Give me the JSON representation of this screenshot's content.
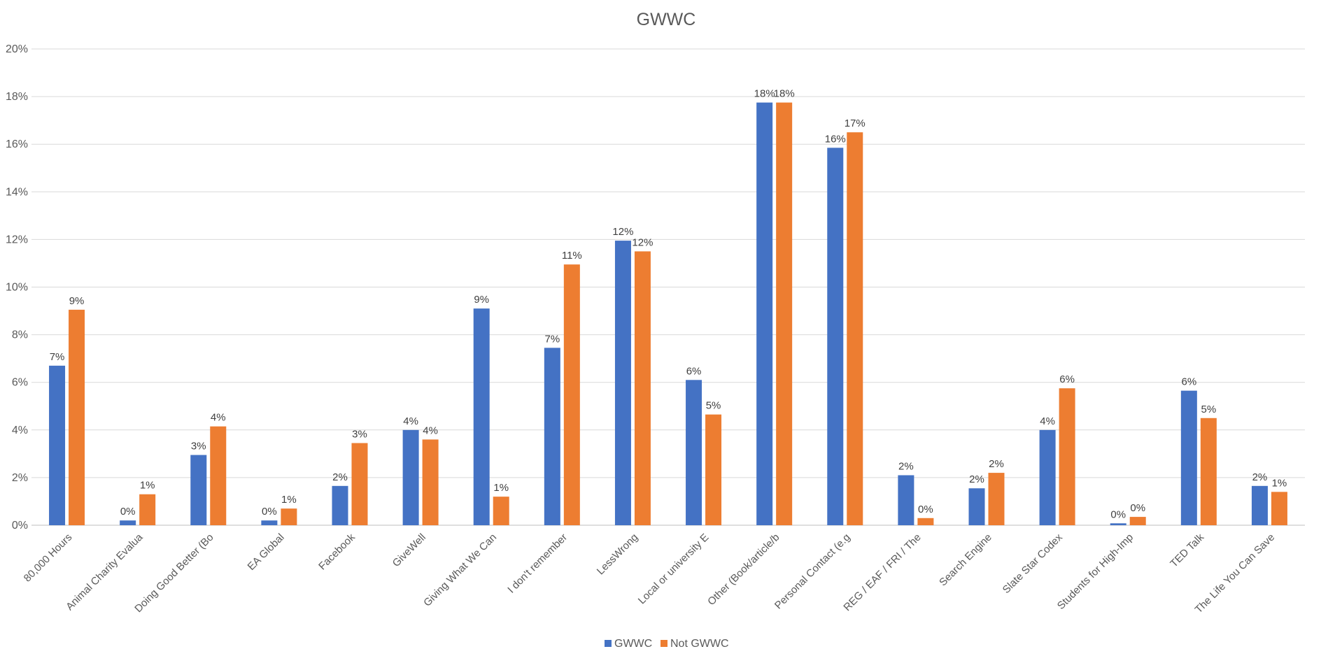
{
  "chart_data": {
    "type": "bar",
    "title": "GWWC",
    "categories": [
      "80,000 Hours",
      "Animal Charity Evalua",
      "Doing Good Better (Bo",
      "EA Global",
      "Facebook",
      "GiveWell",
      "Giving What We Can",
      "I don't remember",
      "LessWrong",
      "Local or university E",
      "Other (Book/article/b",
      "Personal Contact (e.g",
      "REG / EAF / FRI / The",
      "Search Engine",
      "Slate Star Codex",
      "Students for High-Imp",
      "TED Talk",
      "The Life You Can Save"
    ],
    "series": [
      {
        "name": "GWWC",
        "color": "#4472c4",
        "values": [
          6.7,
          0.2,
          2.95,
          0.2,
          1.65,
          4.0,
          9.1,
          7.45,
          11.95,
          6.1,
          17.75,
          15.85,
          2.1,
          1.55,
          4.0,
          0.08,
          5.65,
          1.65
        ],
        "labels": [
          "7%",
          "0%",
          "3%",
          "0%",
          "2%",
          "4%",
          "9%",
          "7%",
          "12%",
          "6%",
          "18%",
          "16%",
          "2%",
          "2%",
          "4%",
          "0%",
          "6%",
          "2%"
        ]
      },
      {
        "name": "Not GWWC",
        "color": "#ed7d31",
        "values": [
          9.05,
          1.3,
          4.15,
          0.7,
          3.45,
          3.6,
          1.2,
          10.95,
          11.5,
          4.65,
          17.75,
          16.5,
          0.3,
          2.2,
          5.75,
          0.35,
          4.5,
          1.4
        ],
        "labels": [
          "9%",
          "1%",
          "4%",
          "1%",
          "3%",
          "4%",
          "1%",
          "11%",
          "12%",
          "5%",
          "18%",
          "17%",
          "0%",
          "2%",
          "6%",
          "0%",
          "5%",
          "1%"
        ]
      }
    ],
    "ylim": [
      0,
      20
    ],
    "yticks": [
      0,
      2,
      4,
      6,
      8,
      10,
      12,
      14,
      16,
      18,
      20
    ],
    "ytick_labels": [
      "0%",
      "2%",
      "4%",
      "6%",
      "8%",
      "10%",
      "12%",
      "14%",
      "16%",
      "18%",
      "20%"
    ],
    "grid": true,
    "legend": "bottom"
  }
}
